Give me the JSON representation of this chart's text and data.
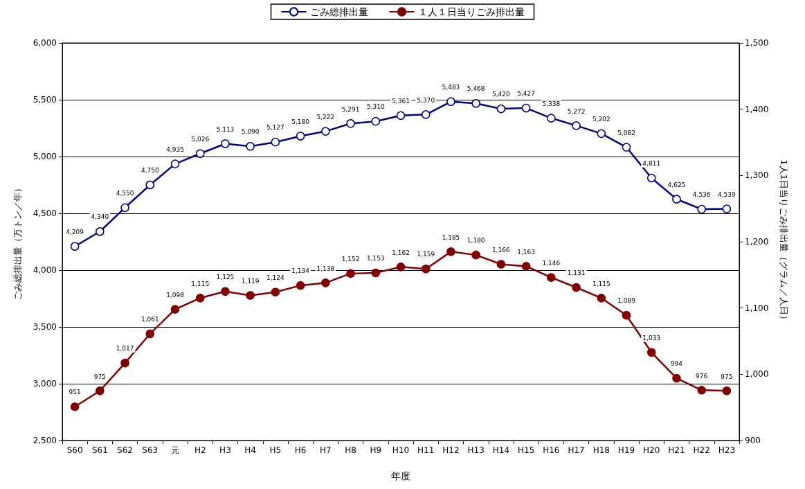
{
  "chart_data": {
    "type": "line",
    "xlabel": "年度",
    "ylabel": "ごみ総排出量（万トン／年）",
    "y2label": "1人1日当りごみ排出量（グラム／人日）",
    "categories": [
      "S60",
      "S61",
      "S62",
      "S63",
      "元",
      "H2",
      "H3",
      "H4",
      "H5",
      "H6",
      "H7",
      "H8",
      "H9",
      "H10",
      "H11",
      "H12",
      "H13",
      "H14",
      "H15",
      "H16",
      "H17",
      "H18",
      "H19",
      "H20",
      "H21",
      "H22",
      "H23"
    ],
    "series": [
      {
        "name": "ごみ総排出量",
        "color": "#000080",
        "values": [
          4209,
          4340,
          4550,
          4750,
          4935,
          5026,
          5113,
          5090,
          5127,
          5180,
          5222,
          5291,
          5310,
          5361,
          5370,
          5483,
          5468,
          5420,
          5427,
          5338,
          5272,
          5202,
          5082,
          4811,
          4625,
          4536,
          4539
        ],
        "value_labels": [
          "4,209",
          "4,340",
          "4,550",
          "4,750",
          "4,935",
          "5,026",
          "5,113",
          "5,090",
          "5,127",
          "5,180",
          "5,222",
          "5,291",
          "5,310",
          "5,361",
          "5,370",
          "5,483",
          "5,468",
          "5,420",
          "5,427",
          "5,338",
          "5,272",
          "5,202",
          "5,082",
          "4,811",
          "4,625",
          "4,536",
          "4,539"
        ]
      },
      {
        "name": "１人１日当りごみ排出量",
        "color": "#800000",
        "axis": "y2",
        "values": [
          951,
          975,
          1017,
          1061,
          1098,
          1115,
          1125,
          1119,
          1124,
          1134,
          1138,
          1152,
          1153,
          1162,
          1159,
          1185,
          1180,
          1166,
          1163,
          1146,
          1131,
          1115,
          1089,
          1033,
          994,
          976,
          975
        ],
        "value_labels": [
          "951",
          "975",
          "1,017",
          "1,061",
          "1,098",
          "1,115",
          "1,125",
          "1,119",
          "1,124",
          "1,134",
          "1,138",
          "1,152",
          "1,153",
          "1,162",
          "1,159",
          "1,185",
          "1,180",
          "1,166",
          "1,163",
          "1,146",
          "1,131",
          "1,115",
          "1,089",
          "1,033",
          "994",
          "976",
          "975"
        ]
      }
    ],
    "ylim": [
      2500,
      6000
    ],
    "yticks": [
      {
        "value": 2500,
        "label": "2,500"
      },
      {
        "value": 3000,
        "label": "3,000"
      },
      {
        "value": 3500,
        "label": "3,500"
      },
      {
        "value": 4000,
        "label": "4,000"
      },
      {
        "value": 4500,
        "label": "4,500"
      },
      {
        "value": 5000,
        "label": "5,000"
      },
      {
        "value": 5500,
        "label": "5,500"
      },
      {
        "value": 6000,
        "label": "6,000"
      }
    ],
    "y2lim": [
      900,
      1500
    ],
    "y2ticks": [
      900,
      {
        "value": 1000,
        "label": "1,000"
      },
      {
        "value": 1100,
        "label": "1,100"
      },
      {
        "value": 1200,
        "label": "1,200"
      },
      {
        "value": 1300,
        "label": "1,300"
      },
      {
        "value": 1400,
        "label": "1,400"
      },
      {
        "value": 1500,
        "label": "1,500"
      }
    ],
    "grid": "y",
    "legend": "top",
    "marker": "circle",
    "line_style": "solid"
  }
}
